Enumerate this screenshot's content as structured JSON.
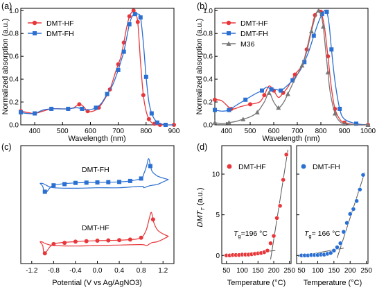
{
  "colors": {
    "red": "#e8373a",
    "blue": "#2a6fd2",
    "gray": "#777777",
    "axis": "#000000",
    "fit": "#555555"
  },
  "chart_data": [
    {
      "panel": "(a)",
      "type": "line",
      "xlabel": "Wavelength (nm)",
      "ylabel": "Normalized absorption (a.u.)",
      "xlim": [
        350,
        900
      ],
      "ylim": [
        0,
        1.02
      ],
      "xticks": [
        "400",
        "500",
        "600",
        "700",
        "800",
        "900"
      ],
      "yticks": [
        "0.0",
        "0.2",
        "0.4",
        "0.6",
        "0.8",
        "1.0"
      ],
      "legend_position": "top-left",
      "series": [
        {
          "name": "DMT-HF",
          "marker": "circle",
          "color": "#e8373a",
          "x": [
            350,
            370,
            400,
            430,
            460,
            490,
            520,
            540,
            560,
            575,
            590,
            610,
            630,
            650,
            670,
            690,
            700,
            710,
            720,
            730,
            740,
            750,
            755,
            760,
            770,
            780,
            790,
            800,
            810,
            820,
            830,
            840,
            850,
            870,
            900
          ],
          "y": [
            0.12,
            0.11,
            0.1,
            0.12,
            0.14,
            0.14,
            0.14,
            0.15,
            0.18,
            0.16,
            0.12,
            0.12,
            0.15,
            0.22,
            0.31,
            0.46,
            0.53,
            0.6,
            0.72,
            0.85,
            0.95,
            0.99,
            1.0,
            0.99,
            0.9,
            0.55,
            0.26,
            0.12,
            0.05,
            0.02,
            0.01,
            0.0,
            0.0,
            0.0,
            0.0
          ]
        },
        {
          "name": "DMT-FH",
          "marker": "square",
          "color": "#2a6fd2",
          "x": [
            350,
            370,
            400,
            430,
            460,
            490,
            520,
            550,
            570,
            590,
            620,
            640,
            660,
            680,
            700,
            710,
            720,
            730,
            740,
            750,
            760,
            770,
            780,
            790,
            800,
            810,
            820,
            830,
            840,
            850,
            870,
            900
          ],
          "y": [
            0.11,
            0.1,
            0.1,
            0.13,
            0.14,
            0.14,
            0.14,
            0.15,
            0.14,
            0.13,
            0.15,
            0.19,
            0.27,
            0.35,
            0.48,
            0.56,
            0.64,
            0.76,
            0.88,
            0.95,
            0.97,
            0.97,
            0.94,
            0.72,
            0.42,
            0.2,
            0.1,
            0.05,
            0.02,
            0.01,
            0.0,
            0.0
          ]
        }
      ]
    },
    {
      "panel": "(b)",
      "type": "line",
      "xlabel": "Wavelength (nm)",
      "ylabel": "Normalized absorption (a.u.)",
      "xlim": [
        350,
        1000
      ],
      "ylim": [
        0,
        1.02
      ],
      "xticks": [
        "400",
        "500",
        "600",
        "700",
        "800",
        "900",
        "1000"
      ],
      "yticks": [
        "0.0",
        "0.2",
        "0.4",
        "0.6",
        "0.8",
        "1.0"
      ],
      "legend_position": "top-left",
      "series": [
        {
          "name": "DMT-HF",
          "marker": "circle",
          "color": "#e8373a",
          "x": [
            350,
            380,
            420,
            460,
            500,
            540,
            560,
            580,
            600,
            620,
            640,
            660,
            690,
            720,
            740,
            760,
            775,
            790,
            800,
            815,
            830,
            845,
            860,
            880,
            900,
            950,
            1000
          ],
          "y": [
            0.22,
            0.21,
            0.14,
            0.16,
            0.18,
            0.2,
            0.26,
            0.34,
            0.3,
            0.24,
            0.28,
            0.33,
            0.44,
            0.52,
            0.66,
            0.84,
            0.96,
            1.0,
            0.99,
            0.86,
            0.6,
            0.32,
            0.14,
            0.05,
            0.02,
            0.0,
            0.0
          ]
        },
        {
          "name": "DMT-FH",
          "marker": "square",
          "color": "#2a6fd2",
          "x": [
            350,
            380,
            410,
            440,
            480,
            520,
            550,
            570,
            590,
            610,
            630,
            650,
            680,
            710,
            730,
            750,
            770,
            790,
            805,
            815,
            825,
            835,
            845,
            860,
            880,
            900,
            950,
            1000
          ],
          "y": [
            0.13,
            0.12,
            0.13,
            0.17,
            0.22,
            0.27,
            0.3,
            0.33,
            0.31,
            0.31,
            0.3,
            0.33,
            0.39,
            0.47,
            0.55,
            0.65,
            0.78,
            0.9,
            0.97,
            1.0,
            0.99,
            0.88,
            0.66,
            0.38,
            0.14,
            0.05,
            0.01,
            0.0
          ]
        },
        {
          "name": "M36",
          "marker": "triangle",
          "color": "#777777",
          "x": [
            350,
            380,
            410,
            440,
            470,
            500,
            530,
            560,
            580,
            600,
            620,
            640,
            660,
            690,
            720,
            740,
            760,
            780,
            790,
            800,
            810,
            820,
            830,
            840,
            860,
            880,
            900,
            950,
            1000
          ],
          "y": [
            0.02,
            0.01,
            0.02,
            0.03,
            0.05,
            0.07,
            0.11,
            0.2,
            0.28,
            0.2,
            0.15,
            0.19,
            0.27,
            0.4,
            0.52,
            0.64,
            0.82,
            0.97,
            1.0,
            0.97,
            0.86,
            0.66,
            0.46,
            0.28,
            0.1,
            0.03,
            0.01,
            0.0,
            0.0
          ]
        }
      ]
    },
    {
      "panel": "(c)",
      "type": "line",
      "xlabel": "Potential (V vs Ag/AgNO3)",
      "xlim": [
        -1.4,
        1.4
      ],
      "xticks": [
        "-1.2",
        "-0.8",
        "-0.4",
        "0.0",
        "0.4",
        "0.8",
        "1.2"
      ],
      "series": [
        {
          "name": "DMT-FH",
          "marker": "square",
          "color": "#2a6fd2",
          "forward": {
            "x": [
              -1.05,
              -1.0,
              -0.95,
              -0.8,
              -0.4,
              0.0,
              0.4,
              0.6,
              0.8,
              0.85,
              0.9,
              0.93,
              0.95,
              0.97,
              1.0,
              1.05,
              1.1,
              1.2,
              1.3
            ],
            "y": [
              -0.1,
              -0.4,
              -1.1,
              -0.3,
              -0.05,
              0.0,
              0.05,
              0.15,
              0.4,
              0.9,
              1.7,
              2.4,
              2.3,
              1.7,
              1.15,
              0.85,
              0.65,
              0.45,
              0.3
            ]
          },
          "reverse": {
            "x": [
              1.3,
              1.2,
              1.1,
              1.0,
              0.95,
              0.9,
              0.85,
              0.8,
              0.4,
              0.0,
              -0.4,
              -0.8,
              -0.95,
              -1.0,
              -1.05
            ],
            "y": [
              0.3,
              0.05,
              -0.2,
              -0.3,
              -0.35,
              -0.45,
              -0.55,
              -0.4,
              -0.55,
              -0.55,
              -0.6,
              -0.55,
              -0.25,
              -0.1,
              -0.1
            ]
          }
        },
        {
          "name": "DMT-HF",
          "marker": "circle",
          "color": "#e8373a",
          "forward": {
            "x": [
              -1.05,
              -1.0,
              -0.96,
              -0.8,
              -0.4,
              0.0,
              0.4,
              0.7,
              0.8,
              0.85,
              0.9,
              0.95,
              0.98,
              1.0,
              1.03,
              1.1,
              1.2,
              1.3
            ],
            "y": [
              -0.1,
              -0.5,
              -1.3,
              -0.35,
              -0.1,
              0.0,
              0.05,
              0.15,
              0.3,
              0.6,
              1.2,
              2.3,
              2.9,
              2.7,
              1.9,
              1.1,
              0.7,
              0.45
            ]
          },
          "reverse": {
            "x": [
              1.3,
              1.2,
              1.1,
              1.0,
              0.95,
              0.9,
              0.8,
              0.4,
              0.0,
              -0.4,
              -0.8,
              -0.95,
              -1.0,
              -1.05
            ],
            "y": [
              0.45,
              0.15,
              -0.1,
              -0.2,
              -0.35,
              -0.5,
              -0.4,
              -0.45,
              -0.5,
              -0.55,
              -0.5,
              -0.3,
              -0.15,
              -0.1
            ]
          }
        }
      ]
    },
    {
      "panel": "(d)",
      "type": "scatter",
      "ylabel": "DMT",
      "xlabel": "Temperature (°C)",
      "ylim": [
        -1,
        13.5
      ],
      "yticks": [
        "0",
        "5",
        "10"
      ],
      "subplots": [
        {
          "name": "DMT-HF",
          "color": "#e8373a",
          "xlim": [
            35,
            255
          ],
          "xticks": [
            "50",
            "100",
            "150",
            "200",
            "250"
          ],
          "tg_label": "T",
          "tg_value": "=196 °C",
          "x": [
            50,
            60,
            70,
            80,
            90,
            100,
            110,
            120,
            130,
            140,
            150,
            160,
            170,
            180,
            190,
            200,
            210,
            220,
            230,
            240
          ],
          "y": [
            0.0,
            0.0,
            0.05,
            0.05,
            0.05,
            0.1,
            0.1,
            0.1,
            0.15,
            0.2,
            0.25,
            0.3,
            0.4,
            0.6,
            1.5,
            2.4,
            4.6,
            6.1,
            9.3,
            12.4
          ],
          "fit_low": [
            [
              40,
              0.0
            ],
            [
              205,
              0.6
            ]
          ],
          "fit_high": [
            [
              190,
              -0.5
            ],
            [
              245,
              13.0
            ]
          ]
        },
        {
          "name": "DMT-FH",
          "color": "#2a6fd2",
          "xlim": [
            35,
            255
          ],
          "xticks": [
            "50",
            "100",
            "150",
            "200",
            "250"
          ],
          "tg_label": "T",
          "tg_value": "= 166 °C",
          "x": [
            50,
            60,
            70,
            80,
            90,
            100,
            110,
            120,
            130,
            140,
            150,
            160,
            170,
            180,
            190,
            200,
            210,
            220,
            230,
            240
          ],
          "y": [
            0.0,
            0.0,
            0.0,
            0.05,
            0.05,
            0.05,
            0.1,
            0.1,
            0.2,
            0.3,
            0.6,
            1.0,
            1.5,
            2.9,
            4.0,
            5.1,
            5.7,
            6.7,
            8.1,
            9.9
          ],
          "fit_low": [
            [
              40,
              -0.1
            ],
            [
              180,
              0.9
            ]
          ],
          "fit_high": [
            [
              160,
              -0.3
            ],
            [
              245,
              10.2
            ]
          ]
        }
      ]
    }
  ]
}
